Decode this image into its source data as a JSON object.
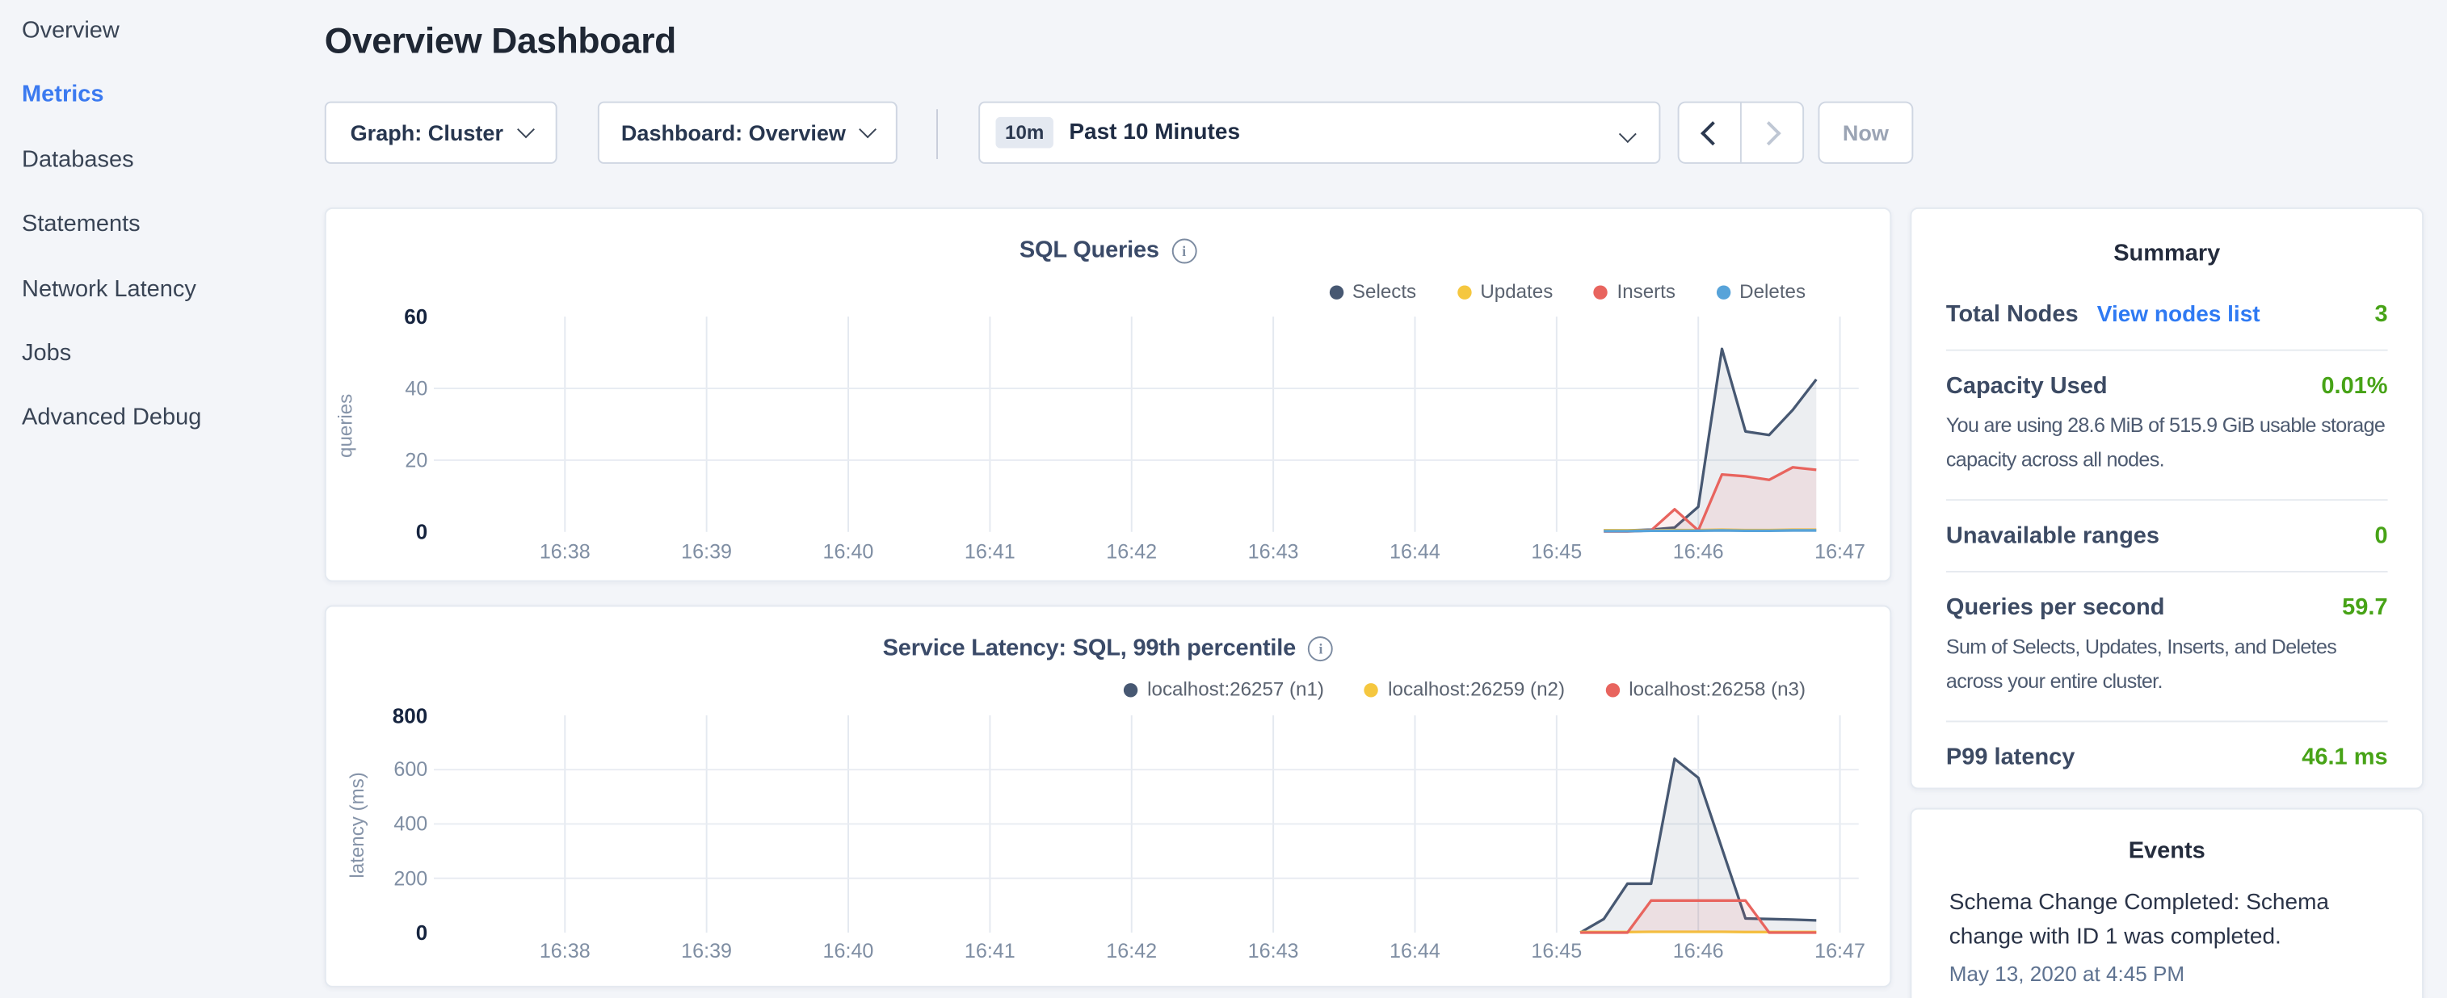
{
  "sidebar": {
    "items": [
      {
        "label": "Overview",
        "active": false
      },
      {
        "label": "Metrics",
        "active": true
      },
      {
        "label": "Databases",
        "active": false
      },
      {
        "label": "Statements",
        "active": false
      },
      {
        "label": "Network Latency",
        "active": false
      },
      {
        "label": "Jobs",
        "active": false
      },
      {
        "label": "Advanced Debug",
        "active": false
      }
    ]
  },
  "header": {
    "title": "Overview Dashboard"
  },
  "controls": {
    "graph_label": "Graph: Cluster",
    "dashboard_label": "Dashboard: Overview",
    "range_badge": "10m",
    "range_label": "Past 10 Minutes",
    "now_label": "Now"
  },
  "summary": {
    "title": "Summary",
    "rows": [
      {
        "label": "Total Nodes",
        "link": "View nodes list",
        "value": "3"
      },
      {
        "label": "Capacity Used",
        "value": "0.01%",
        "subtext": "You are using 28.6 MiB of 515.9 GiB usable storage capacity across all nodes."
      },
      {
        "label": "Unavailable ranges",
        "value": "0"
      },
      {
        "label": "Queries per second",
        "value": "59.7",
        "subtext": "Sum of Selects, Updates, Inserts, and Deletes across your entire cluster."
      },
      {
        "label": "P99 latency",
        "value": "46.1 ms"
      }
    ]
  },
  "events": {
    "title": "Events",
    "items": [
      {
        "text": "Schema Change Completed: Schema change with ID 1 was completed.",
        "timestamp": "May 13, 2020 at 4:45 PM"
      }
    ]
  },
  "colors": {
    "accent_blue": "#3b7af0",
    "link_blue": "#2f7af3",
    "value_green": "#47a317"
  },
  "chart_data": [
    {
      "type": "area",
      "title": "SQL Queries",
      "info_icon": "i",
      "ylabel": "queries",
      "xlabel": "",
      "x_tick_labels": [
        "16:38",
        "16:39",
        "16:40",
        "16:41",
        "16:42",
        "16:43",
        "16:44",
        "16:45",
        "16:46",
        "16:47"
      ],
      "y_ticks": [
        60,
        40,
        20,
        0
      ],
      "y_gridlines": [
        40,
        20
      ],
      "ylim": [
        0,
        60
      ],
      "legend_position": "top-right",
      "grid": true,
      "x_note": "x values are decimal minutes after 16:38; data spans 16:45:20 to 16:46:50",
      "series": [
        {
          "name": "Selects",
          "color": "#475872",
          "fill": "rgba(71,88,114,0.10)",
          "x": [
            7.333,
            7.5,
            7.667,
            7.833,
            8.0,
            8.167,
            8.333,
            8.5,
            8.667,
            8.833
          ],
          "values": [
            0.4,
            0.4,
            0.6,
            1.2,
            7,
            51,
            28,
            27,
            34,
            42.5
          ]
        },
        {
          "name": "Updates",
          "color": "#f5c73f",
          "fill": null,
          "x": [
            7.333,
            7.5,
            7.667,
            7.833,
            8.0,
            8.167,
            8.333,
            8.5,
            8.667,
            8.833
          ],
          "values": [
            0.4,
            0.4,
            0.4,
            0.5,
            0.5,
            0.6,
            0.5,
            0.5,
            0.6,
            0.6
          ]
        },
        {
          "name": "Inserts",
          "color": "#e8645e",
          "fill": "rgba(232,100,94,0.10)",
          "x": [
            7.333,
            7.5,
            7.667,
            7.833,
            8.0,
            8.167,
            8.333,
            8.5,
            8.667,
            8.833
          ],
          "values": [
            0.1,
            0.1,
            0.4,
            6.3,
            0.4,
            16,
            15.5,
            14.5,
            18,
            17.3
          ]
        },
        {
          "name": "Deletes",
          "color": "#57a3d9",
          "fill": null,
          "x": [
            7.333,
            7.5,
            7.667,
            7.833,
            8.0,
            8.167,
            8.333,
            8.5,
            8.667,
            8.833
          ],
          "values": [
            0.2,
            0.2,
            0.3,
            0.3,
            0.3,
            0.4,
            0.3,
            0.3,
            0.4,
            0.4
          ]
        }
      ]
    },
    {
      "type": "area",
      "title": "Service Latency: SQL, 99th percentile",
      "info_icon": "i",
      "ylabel": "latency (ms)",
      "xlabel": "",
      "x_tick_labels": [
        "16:38",
        "16:39",
        "16:40",
        "16:41",
        "16:42",
        "16:43",
        "16:44",
        "16:45",
        "16:46",
        "16:47"
      ],
      "y_ticks": [
        800,
        600,
        400,
        200,
        0
      ],
      "y_gridlines": [
        600,
        400,
        200
      ],
      "ylim": [
        0,
        800
      ],
      "legend_position": "top-right",
      "grid": true,
      "x_note": "x values are decimal minutes after 16:38; data spans 16:45:10 to 16:46:50",
      "series": [
        {
          "name": "localhost:26257 (n1)",
          "color": "#475872",
          "fill": "rgba(71,88,114,0.10)",
          "x": [
            7.167,
            7.333,
            7.5,
            7.667,
            7.833,
            8.0,
            8.167,
            8.333,
            8.5,
            8.667,
            8.833
          ],
          "values": [
            0,
            50,
            180,
            180,
            640,
            570,
            310,
            52,
            50,
            48,
            45
          ]
        },
        {
          "name": "localhost:26259 (n2)",
          "color": "#f5c73f",
          "fill": null,
          "x": [
            7.167,
            7.333,
            7.5,
            7.667,
            7.833,
            8.0,
            8.167,
            8.333,
            8.5,
            8.667,
            8.833
          ],
          "values": [
            2,
            2,
            2,
            3,
            3,
            3,
            3,
            2,
            2,
            2,
            2
          ]
        },
        {
          "name": "localhost:26258 (n3)",
          "color": "#e8645e",
          "fill": "rgba(232,100,94,0.10)",
          "x": [
            7.167,
            7.333,
            7.5,
            7.667,
            7.833,
            8.0,
            8.167,
            8.333,
            8.5,
            8.667,
            8.833
          ],
          "values": [
            0,
            0,
            0,
            118,
            118,
            118,
            118,
            118,
            0,
            0,
            0
          ]
        }
      ]
    }
  ]
}
